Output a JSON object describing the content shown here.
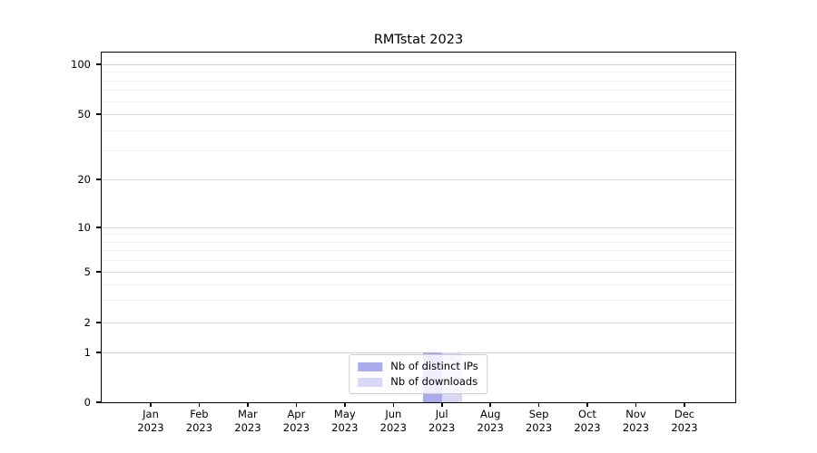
{
  "chart_data": {
    "type": "bar",
    "title": "RMTstat 2023",
    "categories": [
      "Jan 2023",
      "Feb 2023",
      "Mar 2023",
      "Apr 2023",
      "May 2023",
      "Jun 2023",
      "Jul 2023",
      "Aug 2023",
      "Sep 2023",
      "Oct 2023",
      "Nov 2023",
      "Dec 2023"
    ],
    "series": [
      {
        "name": "Nb of distinct IPs",
        "color": "#aaaaee",
        "values": [
          0,
          0,
          0,
          0,
          0,
          0,
          1,
          0,
          0,
          0,
          0,
          0
        ]
      },
      {
        "name": "Nb of downloads",
        "color": "#d8d8f6",
        "values": [
          0,
          0,
          0,
          0,
          0,
          0,
          1,
          0,
          0,
          0,
          0,
          0
        ]
      }
    ],
    "xlabel": "",
    "ylabel": "",
    "yscale": "symlog",
    "y_ticks": [
      0,
      1,
      2,
      5,
      10,
      20,
      50,
      100
    ],
    "y_minor_ticks": [
      3,
      4,
      6,
      7,
      8,
      9,
      30,
      40,
      60,
      70,
      80,
      90
    ],
    "ylim": [
      0,
      118
    ],
    "grid": true,
    "legend": {
      "position": "lower center",
      "labels": [
        "Nb of distinct IPs",
        "Nb of downloads"
      ]
    }
  }
}
